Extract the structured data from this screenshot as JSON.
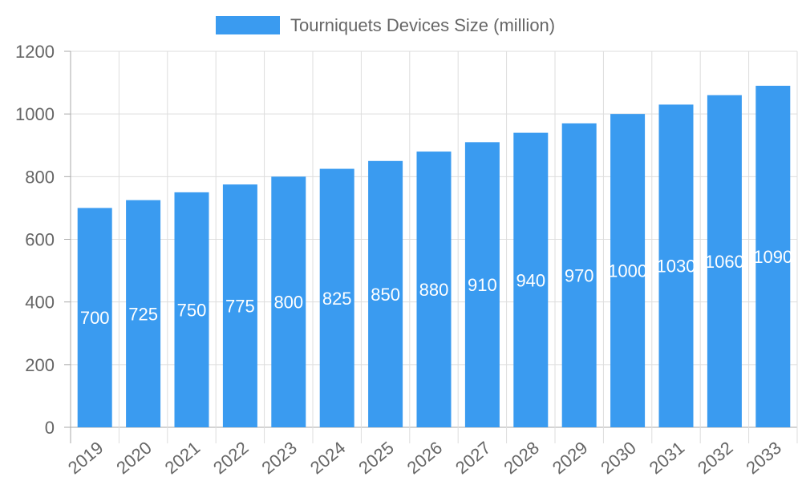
{
  "chart_data": {
    "type": "bar",
    "title": "",
    "xlabel": "",
    "ylabel": "",
    "categories": [
      "2019",
      "2020",
      "2021",
      "2022",
      "2023",
      "2024",
      "2025",
      "2026",
      "2027",
      "2028",
      "2029",
      "2030",
      "2031",
      "2032",
      "2033"
    ],
    "series": [
      {
        "name": "Tourniquets Devices Size (million)",
        "values": [
          700,
          725,
          750,
          775,
          800,
          825,
          850,
          880,
          910,
          940,
          970,
          1000,
          1030,
          1060,
          1090
        ],
        "color": "#3a9bf0"
      }
    ],
    "ylim": [
      0,
      1200
    ],
    "yticks": [
      0,
      200,
      400,
      600,
      800,
      1000,
      1200
    ],
    "grid": true,
    "legend_position": "top",
    "data_labels": true
  }
}
